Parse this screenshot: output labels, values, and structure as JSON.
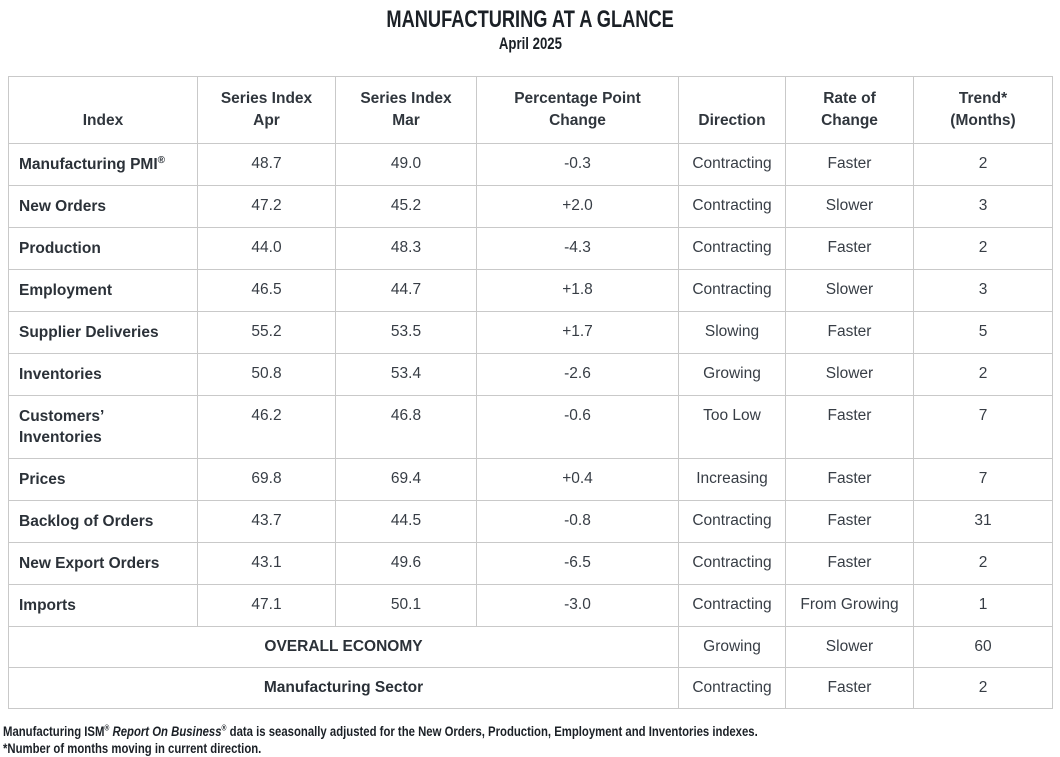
{
  "title": "MANUFACTURING AT A GLANCE",
  "subtitle": "April 2025",
  "colors": {
    "title_text": "#1b2026",
    "body_text": "#373d45",
    "border": "#c9c9c9",
    "background": "#ffffff"
  },
  "table": {
    "headers": [
      "Index",
      "Series Index\nApr",
      "Series Index\nMar",
      "Percentage Point\nChange",
      "Direction",
      "Rate of\nChange",
      "Trend*\n(Months)"
    ],
    "rows": [
      {
        "name": "Manufacturing PMI",
        "name_sup": "®",
        "apr": "48.7",
        "mar": "49.0",
        "change": "-0.3",
        "direction": "Contracting",
        "rate": "Faster",
        "trend": "2"
      },
      {
        "name": "New Orders",
        "apr": "47.2",
        "mar": "45.2",
        "change": "+2.0",
        "direction": "Contracting",
        "rate": "Slower",
        "trend": "3"
      },
      {
        "name": "Production",
        "apr": "44.0",
        "mar": "48.3",
        "change": "-4.3",
        "direction": "Contracting",
        "rate": "Faster",
        "trend": "2"
      },
      {
        "name": "Employment",
        "apr": "46.5",
        "mar": "44.7",
        "change": "+1.8",
        "direction": "Contracting",
        "rate": "Slower",
        "trend": "3"
      },
      {
        "name": "Supplier Deliveries",
        "apr": "55.2",
        "mar": "53.5",
        "change": "+1.7",
        "direction": "Slowing",
        "rate": "Faster",
        "trend": "5"
      },
      {
        "name": "Inventories",
        "apr": "50.8",
        "mar": "53.4",
        "change": "-2.6",
        "direction": "Growing",
        "rate": "Slower",
        "trend": "2"
      },
      {
        "name": "Customers’\nInventories",
        "apr": "46.2",
        "mar": "46.8",
        "change": "-0.6",
        "direction": "Too Low",
        "rate": "Faster",
        "trend": "7"
      },
      {
        "name": "Prices",
        "apr": "69.8",
        "mar": "69.4",
        "change": "+0.4",
        "direction": "Increasing",
        "rate": "Faster",
        "trend": "7"
      },
      {
        "name": "Backlog of Orders",
        "apr": "43.7",
        "mar": "44.5",
        "change": "-0.8",
        "direction": "Contracting",
        "rate": "Faster",
        "trend": "31"
      },
      {
        "name": "New Export Orders",
        "apr": "43.1",
        "mar": "49.6",
        "change": "-6.5",
        "direction": "Contracting",
        "rate": "Faster",
        "trend": "2"
      },
      {
        "name": "Imports",
        "apr": "47.1",
        "mar": "50.1",
        "change": "-3.0",
        "direction": "Contracting",
        "rate": "From Growing",
        "trend": "1"
      }
    ],
    "summary_rows": [
      {
        "label": "OVERALL ECONOMY",
        "direction": "Growing",
        "rate": "Slower",
        "trend": "60"
      },
      {
        "label": "Manufacturing Sector",
        "direction": "Contracting",
        "rate": "Faster",
        "trend": "2"
      }
    ]
  },
  "footnotes": {
    "note1_text1": "Manufacturing ISM",
    "note1_sup1": "®",
    "note1_italic": " Report On Business",
    "note1_sup2": "®",
    "note1_text2": " data is seasonally adjusted for the New Orders, Production, Employment and Inventories indexes.",
    "note2": "*Number of months moving in current direction."
  }
}
